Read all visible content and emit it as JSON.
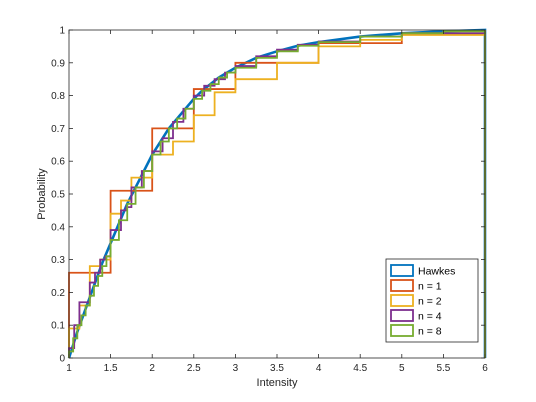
{
  "chart_data": {
    "type": "line",
    "title": "",
    "xlabel": "Intensity",
    "ylabel": "Probability",
    "xlim": [
      1,
      6
    ],
    "ylim": [
      0,
      1
    ],
    "xticks": [
      1,
      1.5,
      2,
      2.5,
      3,
      3.5,
      4,
      4.5,
      5,
      5.5,
      6
    ],
    "xtick_labels": [
      "1",
      "1.5",
      "2",
      "2.5",
      "3",
      "3.5",
      "4",
      "4.5",
      "5",
      "5.5",
      "6"
    ],
    "yticks": [
      0,
      0.1,
      0.2,
      0.3,
      0.4,
      0.5,
      0.6,
      0.7,
      0.8,
      0.9,
      1
    ],
    "ytick_labels": [
      "0",
      "0.1",
      "0.2",
      "0.3",
      "0.4",
      "0.5",
      "0.6",
      "0.7",
      "0.8",
      "0.9",
      "1"
    ],
    "grid": false,
    "legend_position": "bottom-right",
    "series": [
      {
        "name": "Hawkes",
        "color": "#0072BD",
        "style": "smooth-cdf",
        "x": [
          1.0,
          1.1,
          1.2,
          1.3,
          1.4,
          1.5,
          1.6,
          1.7,
          1.8,
          1.9,
          2.0,
          2.1,
          2.2,
          2.3,
          2.4,
          2.5,
          2.6,
          2.7,
          2.8,
          2.9,
          3.0,
          3.25,
          3.5,
          3.75,
          4.0,
          4.5,
          5.0,
          5.5,
          6.0
        ],
        "y": [
          0.0,
          0.08,
          0.15,
          0.22,
          0.29,
          0.35,
          0.41,
          0.47,
          0.52,
          0.57,
          0.62,
          0.66,
          0.7,
          0.73,
          0.76,
          0.79,
          0.815,
          0.835,
          0.855,
          0.87,
          0.885,
          0.915,
          0.935,
          0.952,
          0.963,
          0.98,
          0.99,
          0.996,
          1.0
        ]
      },
      {
        "name": "n = 1",
        "color": "#D95319",
        "style": "stairs",
        "x": [
          1.0,
          1.25,
          1.5,
          2.0,
          2.5,
          3.0,
          4.0,
          5.0,
          6.0
        ],
        "y": [
          0.26,
          0.26,
          0.51,
          0.7,
          0.82,
          0.9,
          0.96,
          0.99,
          1.0
        ]
      },
      {
        "name": "n = 2",
        "color": "#EDB120",
        "style": "stairs",
        "x": [
          1.0,
          1.125,
          1.25,
          1.375,
          1.5,
          1.625,
          1.75,
          2.0,
          2.25,
          2.5,
          2.75,
          3.0,
          3.5,
          4.0,
          4.5,
          5.0,
          6.0
        ],
        "y": [
          0.09,
          0.16,
          0.28,
          0.3,
          0.44,
          0.48,
          0.55,
          0.62,
          0.66,
          0.74,
          0.81,
          0.85,
          0.9,
          0.95,
          0.97,
          0.985,
          1.0
        ]
      },
      {
        "name": "n = 4",
        "color": "#7E2F8E",
        "style": "stairs",
        "x": [
          1.0,
          1.0625,
          1.125,
          1.25,
          1.3125,
          1.375,
          1.4375,
          1.5,
          1.625,
          1.6875,
          1.75,
          1.875,
          2.0,
          2.125,
          2.25,
          2.375,
          2.5,
          2.625,
          2.75,
          2.875,
          3.0,
          3.25,
          3.5,
          3.75,
          4.0,
          4.5,
          5.0,
          6.0
        ],
        "y": [
          0.03,
          0.1,
          0.17,
          0.23,
          0.26,
          0.3,
          0.31,
          0.39,
          0.45,
          0.46,
          0.52,
          0.57,
          0.63,
          0.67,
          0.72,
          0.76,
          0.8,
          0.83,
          0.85,
          0.87,
          0.89,
          0.92,
          0.94,
          0.955,
          0.965,
          0.98,
          0.99,
          1.0
        ]
      },
      {
        "name": "n = 8",
        "color": "#77AC30",
        "style": "stairs",
        "x": [
          1.0,
          1.05,
          1.1,
          1.15,
          1.2,
          1.25,
          1.3,
          1.35,
          1.4,
          1.45,
          1.5,
          1.6,
          1.7,
          1.8,
          1.9,
          2.0,
          2.1,
          2.2,
          2.3,
          2.4,
          2.5,
          2.6,
          2.7,
          2.8,
          2.9,
          3.0,
          3.25,
          3.5,
          3.75,
          4.0,
          4.5,
          5.0,
          5.5,
          6.0
        ],
        "y": [
          0.02,
          0.06,
          0.1,
          0.13,
          0.16,
          0.19,
          0.22,
          0.25,
          0.28,
          0.31,
          0.36,
          0.42,
          0.47,
          0.52,
          0.57,
          0.62,
          0.66,
          0.7,
          0.73,
          0.76,
          0.79,
          0.815,
          0.835,
          0.855,
          0.87,
          0.885,
          0.915,
          0.935,
          0.952,
          0.963,
          0.98,
          0.99,
          0.996,
          1.0
        ]
      }
    ]
  }
}
